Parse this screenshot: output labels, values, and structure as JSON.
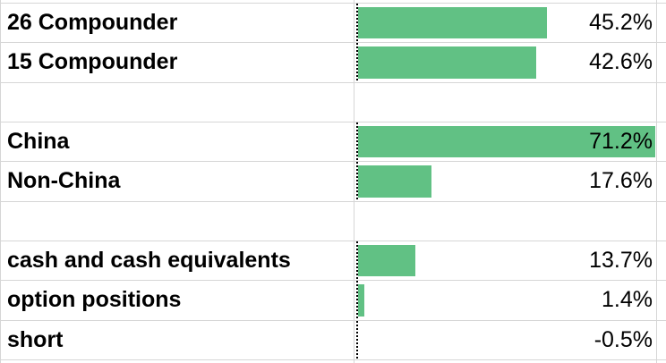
{
  "colors": {
    "bar": "#61C184",
    "gridline": "#D6D6D6",
    "axis": "#000000",
    "text": "#000000",
    "background": "#FFFFFF"
  },
  "chart_data": {
    "type": "bar",
    "orientation": "horizontal",
    "categories": [
      "26 Compounder",
      "15 Compounder",
      "China",
      "Non-China",
      "cash and cash equivalents",
      "option positions",
      "short"
    ],
    "values": [
      45.2,
      42.6,
      71.2,
      17.6,
      13.7,
      1.4,
      -0.5
    ],
    "value_labels": [
      "45.2%",
      "42.6%",
      "71.2%",
      "17.6%",
      "13.7%",
      "1.4%",
      "-0.5%"
    ],
    "xmin": 0,
    "xmax": 71.2,
    "title": "",
    "xlabel": "",
    "ylabel": "",
    "grid": true,
    "legend": false
  },
  "sheet": {
    "rows": [
      {
        "label": "26 Compounder",
        "value": 45.2,
        "value_label": "45.2%",
        "has_databar": true
      },
      {
        "label": "15 Compounder",
        "value": 42.6,
        "value_label": "42.6%",
        "has_databar": true
      },
      {
        "label": "",
        "value": null,
        "value_label": "",
        "has_databar": false
      },
      {
        "label": "China",
        "value": 71.2,
        "value_label": "71.2%",
        "has_databar": true
      },
      {
        "label": "Non-China",
        "value": 17.6,
        "value_label": "17.6%",
        "has_databar": true
      },
      {
        "label": "",
        "value": null,
        "value_label": "",
        "has_databar": false
      },
      {
        "label": "cash and cash equivalents",
        "value": 13.7,
        "value_label": "13.7%",
        "has_databar": true
      },
      {
        "label": "option positions",
        "value": 1.4,
        "value_label": "1.4%",
        "has_databar": true
      },
      {
        "label": "short",
        "value": -0.5,
        "value_label": "-0.5%",
        "has_databar": true
      }
    ]
  }
}
